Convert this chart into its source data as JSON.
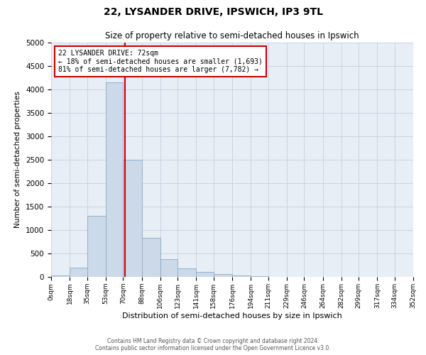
{
  "title": "22, LYSANDER DRIVE, IPSWICH, IP3 9TL",
  "subtitle": "Size of property relative to semi-detached houses in Ipswich",
  "xlabel": "Distribution of semi-detached houses by size in Ipswich",
  "ylabel": "Number of semi-detached properties",
  "bin_edges": [
    0,
    18,
    35,
    53,
    70,
    88,
    106,
    123,
    141,
    158,
    176,
    194,
    211,
    229,
    246,
    264,
    282,
    299,
    317,
    334,
    352
  ],
  "bin_counts": [
    30,
    200,
    1300,
    4150,
    2500,
    840,
    380,
    175,
    105,
    65,
    30,
    10,
    5,
    2,
    1,
    0,
    0,
    0,
    0,
    0
  ],
  "bar_facecolor": "#ccd9e8",
  "bar_edgecolor": "#8aaac8",
  "property_line_x": 72,
  "property_line_color": "#cc0000",
  "annotation_title": "22 LYSANDER DRIVE: 72sqm",
  "annotation_line1": "← 18% of semi-detached houses are smaller (1,693)",
  "annotation_line2": "81% of semi-detached houses are larger (7,782) →",
  "annotation_box_edgecolor": "#cc0000",
  "ylim": [
    0,
    5000
  ],
  "yticks": [
    0,
    500,
    1000,
    1500,
    2000,
    2500,
    3000,
    3500,
    4000,
    4500,
    5000
  ],
  "xtick_labels": [
    "0sqm",
    "18sqm",
    "35sqm",
    "53sqm",
    "70sqm",
    "88sqm",
    "106sqm",
    "123sqm",
    "141sqm",
    "158sqm",
    "176sqm",
    "194sqm",
    "211sqm",
    "229sqm",
    "246sqm",
    "264sqm",
    "282sqm",
    "299sqm",
    "317sqm",
    "334sqm",
    "352sqm"
  ],
  "grid_color": "#c8d4e4",
  "background_color": "#e8eef6",
  "footer_line1": "Contains HM Land Registry data © Crown copyright and database right 2024.",
  "footer_line2": "Contains public sector information licensed under the Open Government Licence v3.0."
}
